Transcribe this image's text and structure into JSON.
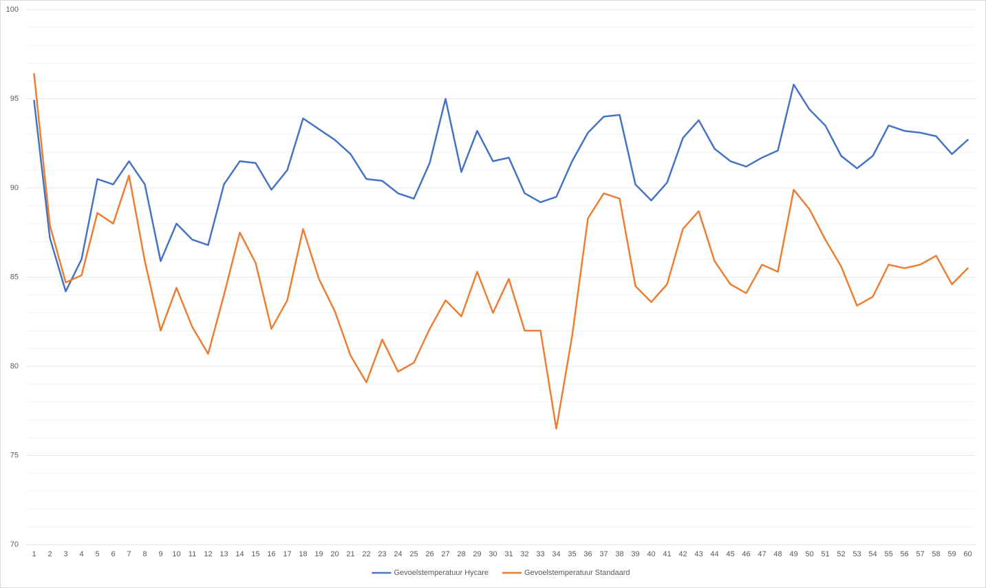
{
  "chart_data": {
    "type": "line",
    "categories": [
      "1",
      "2",
      "3",
      "4",
      "5",
      "6",
      "7",
      "8",
      "9",
      "10",
      "11",
      "12",
      "13",
      "14",
      "15",
      "16",
      "17",
      "18",
      "19",
      "20",
      "21",
      "22",
      "23",
      "24",
      "25",
      "26",
      "27",
      "28",
      "29",
      "30",
      "31",
      "32",
      "33",
      "34",
      "35",
      "36",
      "37",
      "38",
      "39",
      "40",
      "41",
      "42",
      "43",
      "44",
      "45",
      "46",
      "47",
      "48",
      "49",
      "50",
      "51",
      "52",
      "53",
      "54",
      "55",
      "56",
      "57",
      "58",
      "59",
      "60"
    ],
    "series": [
      {
        "name": "Gevoelstemperatuur Hycare",
        "color": "#4472c4",
        "values": [
          94.9,
          87.2,
          84.2,
          86.0,
          90.5,
          90.2,
          91.5,
          90.2,
          85.9,
          88.0,
          87.1,
          86.8,
          90.2,
          91.5,
          91.4,
          89.9,
          91.0,
          93.9,
          93.3,
          92.7,
          91.9,
          90.5,
          90.4,
          89.7,
          89.4,
          91.4,
          95.0,
          90.9,
          93.2,
          91.5,
          91.7,
          89.7,
          89.2,
          89.5,
          91.5,
          93.1,
          94.0,
          94.1,
          90.2,
          89.3,
          90.3,
          92.8,
          93.8,
          92.2,
          91.5,
          91.2,
          91.7,
          92.1,
          95.8,
          94.4,
          93.5,
          91.8,
          91.1,
          91.8,
          93.5,
          93.2,
          93.1,
          92.9,
          91.9,
          92.7
        ]
      },
      {
        "name": "Gevoelstemperatuur Standaard",
        "color": "#ed7d31",
        "values": [
          96.4,
          87.9,
          84.7,
          85.1,
          88.6,
          88.0,
          90.7,
          85.9,
          82.0,
          84.4,
          82.2,
          80.7,
          84.0,
          87.5,
          85.8,
          82.1,
          83.7,
          87.7,
          84.9,
          83.1,
          80.6,
          79.1,
          81.5,
          79.7,
          80.2,
          82.1,
          83.7,
          82.8,
          85.3,
          83.0,
          84.9,
          82.0,
          82.0,
          76.5,
          81.7,
          88.3,
          89.7,
          89.4,
          84.5,
          83.6,
          84.6,
          87.7,
          88.7,
          85.9,
          84.6,
          84.1,
          85.7,
          85.3,
          89.9,
          88.8,
          87.1,
          85.6,
          83.4,
          83.9,
          85.7,
          85.5,
          85.7,
          86.2,
          84.6,
          85.5
        ]
      }
    ],
    "ylim": [
      70,
      100
    ],
    "yticks": [
      70,
      75,
      80,
      85,
      90,
      95,
      100
    ],
    "minor_yticks": [
      71,
      72,
      73,
      74,
      76,
      77,
      78,
      79,
      81,
      82,
      83,
      84,
      86,
      87,
      88,
      89,
      91,
      92,
      93,
      94,
      96,
      97,
      98,
      99
    ],
    "grid": true,
    "legend": "bottom"
  }
}
